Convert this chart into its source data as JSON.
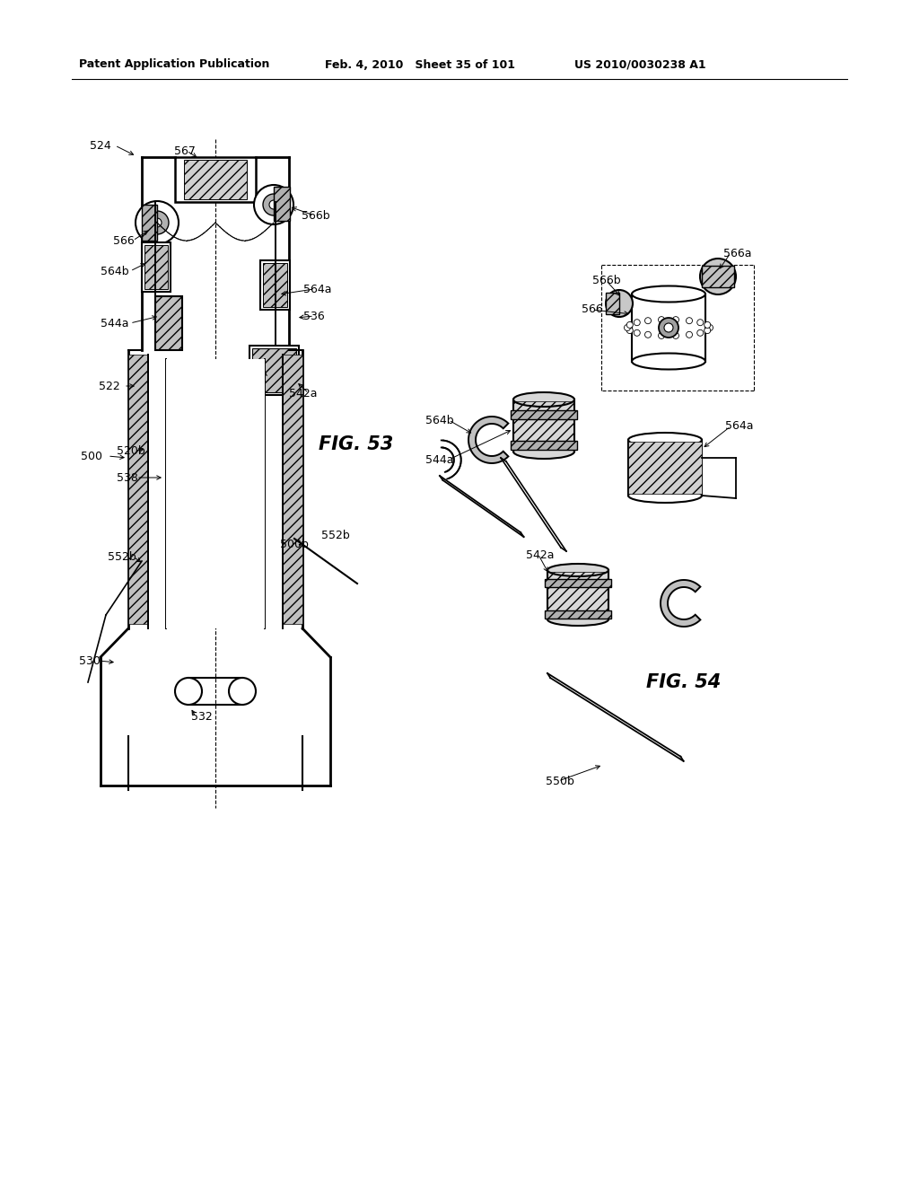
{
  "header_left": "Patent Application Publication",
  "header_center": "Feb. 4, 2010   Sheet 35 of 101",
  "header_right": "US 2010/0030238 A1",
  "fig53_label": "FIG. 53",
  "fig54_label": "FIG. 54",
  "background_color": "#ffffff",
  "line_color": "#000000"
}
